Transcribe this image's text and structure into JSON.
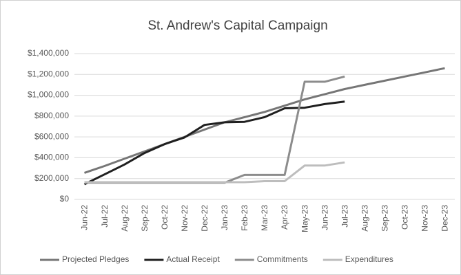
{
  "chart_data": {
    "type": "line",
    "title": "St. Andrew's Capital Campaign",
    "categories": [
      "Jun-22",
      "Jul-22",
      "Aug-22",
      "Sep-22",
      "Oct-22",
      "Nov-22",
      "Dec-22",
      "Jan-23",
      "Feb-23",
      "Mar-23",
      "Apr-23",
      "May-23",
      "Jun-23",
      "Jul-23",
      "Aug-23",
      "Sep-23",
      "Oct-23",
      "Nov-23",
      "Dec-23"
    ],
    "series": [
      {
        "name": "Projected Pledges",
        "color": "#767676",
        "values": [
          255000,
          320000,
          390000,
          460000,
          530000,
          600000,
          670000,
          740000,
          790000,
          840000,
          900000,
          960000,
          1010000,
          1060000,
          1100000,
          1140000,
          1180000,
          1220000,
          1260000
        ]
      },
      {
        "name": "Actual Receipt",
        "color": "#1f1f1f",
        "values": [
          145000,
          240000,
          335000,
          445000,
          530000,
          595000,
          715000,
          740000,
          745000,
          790000,
          875000,
          880000,
          915000,
          940000,
          null,
          null,
          null,
          null,
          null
        ]
      },
      {
        "name": "Commitments",
        "color": "#8c8c8c",
        "values": [
          160000,
          160000,
          160000,
          160000,
          160000,
          160000,
          160000,
          160000,
          235000,
          235000,
          235000,
          1130000,
          1130000,
          1180000,
          null,
          null,
          null,
          null,
          null
        ]
      },
      {
        "name": "Expenditures",
        "color": "#bdbdbd",
        "values": [
          165000,
          165000,
          165000,
          165000,
          165000,
          165000,
          165000,
          165000,
          165000,
          175000,
          175000,
          325000,
          325000,
          355000,
          null,
          null,
          null,
          null,
          null
        ]
      }
    ],
    "ylim": [
      0,
      1400000
    ],
    "yticks": [
      {
        "value": 0,
        "label": "$0"
      },
      {
        "value": 200000,
        "label": "$200,000"
      },
      {
        "value": 400000,
        "label": "$400,000"
      },
      {
        "value": 600000,
        "label": "$600,000"
      },
      {
        "value": 800000,
        "label": "$800,000"
      },
      {
        "value": 1000000,
        "label": "$1,000,000"
      },
      {
        "value": 1200000,
        "label": "$1,200,000"
      },
      {
        "value": 1400000,
        "label": "$1,400,000"
      }
    ],
    "grid": true,
    "legend": "bottom"
  }
}
